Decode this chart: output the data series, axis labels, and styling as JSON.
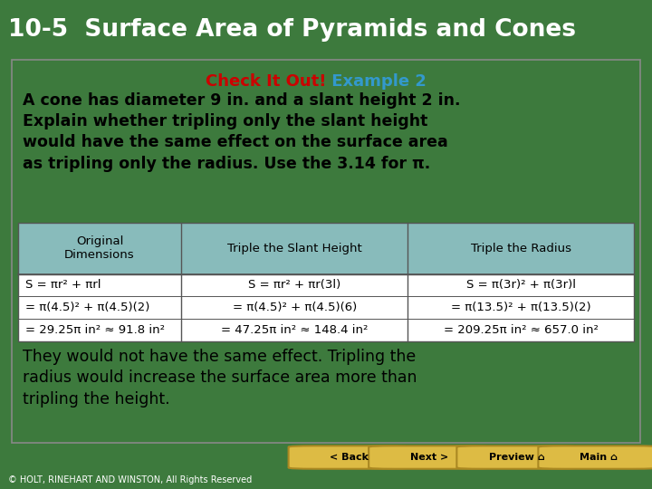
{
  "title": "10-5  Surface Area of Pyramids and Cones",
  "title_bg": "#1c1c1c",
  "title_color": "#ffffff",
  "title_fontsize": 19,
  "check_it_out": "Check It Out!",
  "check_color": "#cc0000",
  "example": " Example 2",
  "example_color": "#3399cc",
  "subtitle_fontsize": 13,
  "body_text": "A cone has diameter 9 in. and a slant height 2 in.\nExplain whether tripling only the slant height\nwould have the same effect on the surface area\nas tripling only the radius. Use the 3.14 for π.",
  "body_fontsize": 12.5,
  "table_header_bg": "#88bbbb",
  "table_header_color": "#000000",
  "table_bg": "#ffffff",
  "table_border": "#555555",
  "col_headers": [
    "Original\nDimensions",
    "Triple the Slant Height",
    "Triple the Radius"
  ],
  "col1": [
    "S = πr² + πrl",
    "= π(4.5)² + π(4.5)(2)",
    "= 29.25π in² ≈ 91.8 in²"
  ],
  "col2": [
    "S = πr² + πr(3l)",
    "= π(4.5)² + π(4.5)(6)",
    "= 47.25π in² ≈ 148.4 in²"
  ],
  "col3": [
    "S = π(3r)² + π(3r)l",
    "= π(13.5)² + π(13.5)(2)",
    "= 209.25π in² ≈ 657.0 in²"
  ],
  "conclusion": "They would not have the same effect. Tripling the\nradius would increase the surface area more than\ntripling the height.",
  "conclusion_fontsize": 12.5,
  "main_bg": "#ffffff",
  "outer_bg": "#3d7a3d",
  "footer_text": "© HOLT, RINEHART AND WINSTON, All Rights Reserved",
  "footer_bg": "#111111",
  "nav_buttons": [
    "< Back",
    "Next >",
    "Preview ⌂",
    "Main ⌂"
  ],
  "nav_bg": "#ddbb44",
  "nav_color": "#000000",
  "nav_border": "#aa8822"
}
